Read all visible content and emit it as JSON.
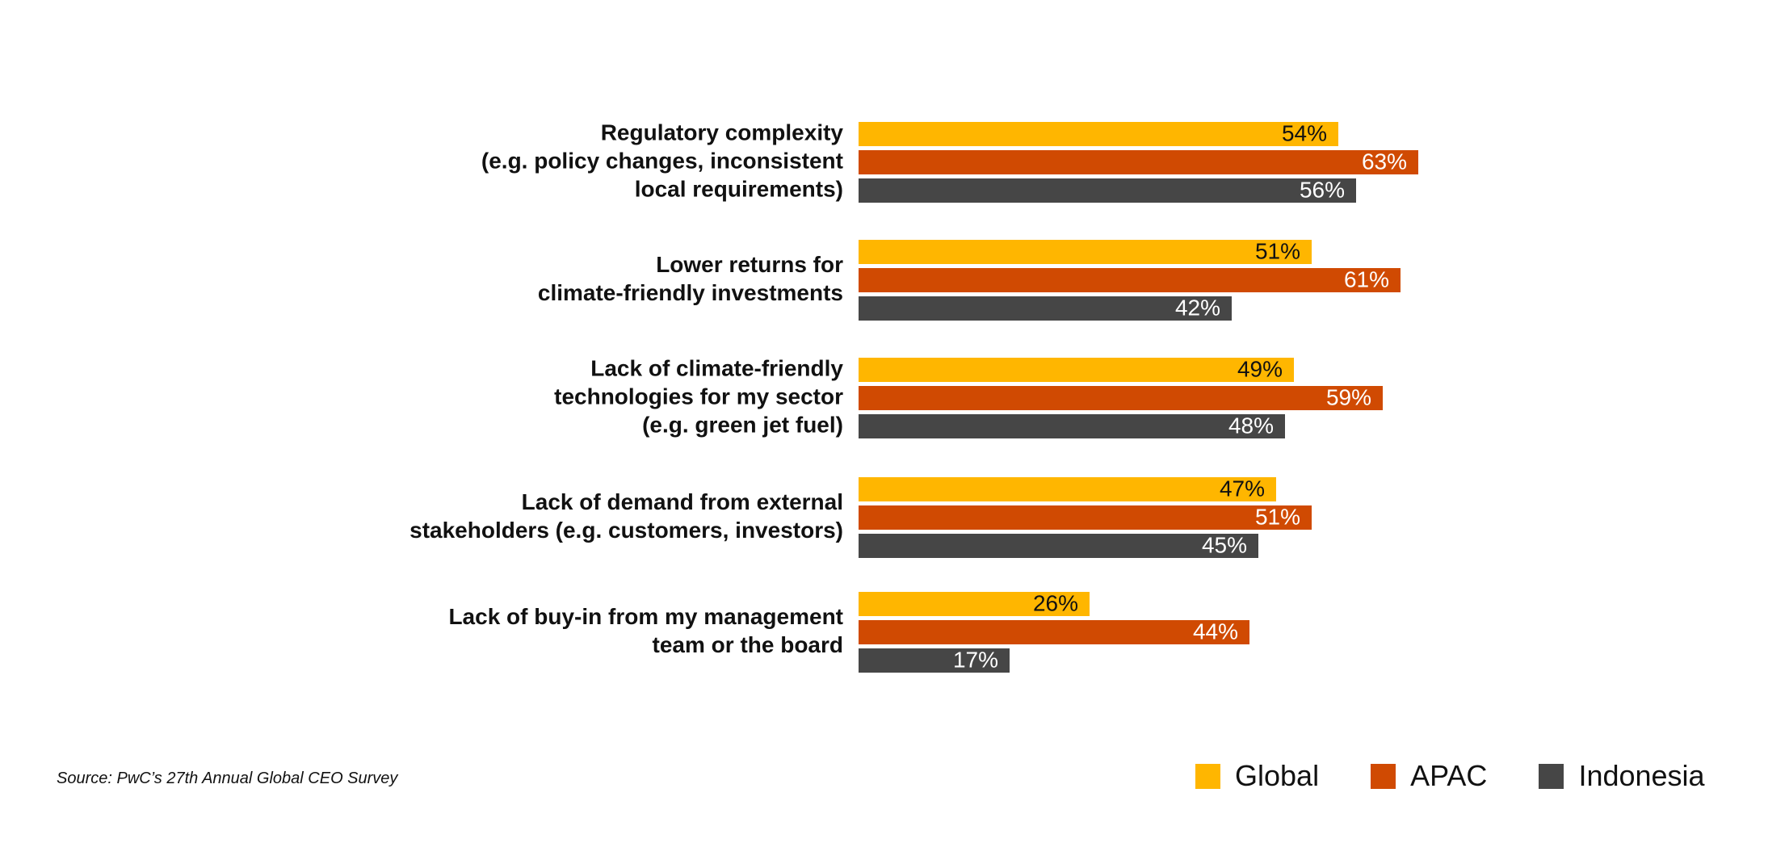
{
  "chart_data": {
    "type": "bar",
    "orientation": "horizontal",
    "categories": [
      [
        "Regulatory complexity",
        "(e.g. policy changes, inconsistent",
        "local requirements)"
      ],
      [
        "Lower returns for",
        "climate-friendly investments"
      ],
      [
        "Lack of climate-friendly",
        "technologies for my sector",
        "(e.g. green jet fuel)"
      ],
      [
        "Lack of demand from external",
        "stakeholders (e.g. customers, investors)"
      ],
      [
        "Lack of buy-in from my management",
        "team or the board"
      ]
    ],
    "series": [
      {
        "name": "Global",
        "color": "#FFB600",
        "label_color": "#111111",
        "values": [
          54,
          51,
          49,
          47,
          26
        ]
      },
      {
        "name": "APAC",
        "color": "#D04A02",
        "label_color": "#ffffff",
        "values": [
          63,
          61,
          59,
          51,
          44
        ]
      },
      {
        "name": "Indonesia",
        "color": "#464646",
        "label_color": "#ffffff",
        "values": [
          56,
          42,
          48,
          45,
          17
        ]
      }
    ],
    "value_suffix": "%",
    "xlim": [
      0,
      100
    ],
    "grid": false,
    "legend_position": "bottom-right"
  },
  "source": "Source: PwC’s 27th Annual Global CEO Survey"
}
